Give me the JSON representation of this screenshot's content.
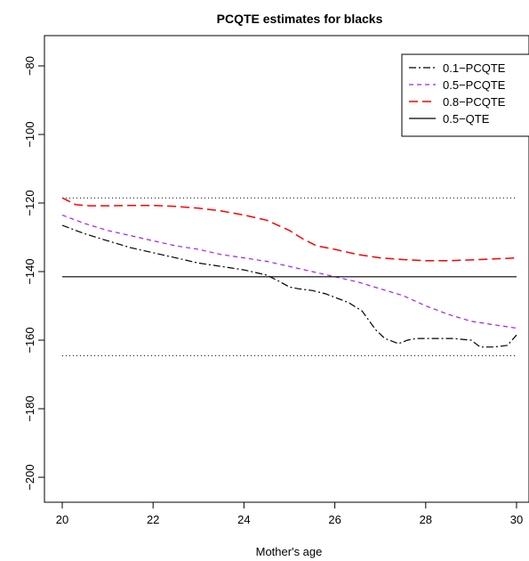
{
  "chart_data": {
    "type": "line",
    "title": "PCQTE estimates for blacks",
    "xlabel": "Mother's age",
    "ylabel": "",
    "xlim": [
      20,
      30
    ],
    "ylim": [
      -200,
      -80
    ],
    "x_ticks": [
      20,
      22,
      24,
      26,
      28,
      30
    ],
    "y_ticks": [
      -200,
      -180,
      -160,
      -140,
      -120,
      -100,
      -80
    ],
    "x_tick_labels": [
      "20",
      "22",
      "24",
      "26",
      "28",
      "30"
    ],
    "y_tick_labels": [
      "−200",
      "−180",
      "−160",
      "−140",
      "−120",
      "−100",
      "−80"
    ],
    "legend_position": "top-right",
    "series": [
      {
        "name": "0.1−PCQTE",
        "color": "#000000",
        "line_style": "dash-dot",
        "x": [
          20,
          20.5,
          21,
          21.5,
          22,
          22.5,
          23,
          23.5,
          24,
          24.5,
          24.8,
          25,
          25.2,
          25.5,
          25.8,
          26,
          26.3,
          26.6,
          26.9,
          27.1,
          27.4,
          27.6,
          27.8,
          28.2,
          28.6,
          29,
          29.2,
          29.5,
          29.8,
          30
        ],
        "values": [
          -126.5,
          -129,
          -131,
          -133,
          -134.5,
          -136,
          -137.5,
          -138.5,
          -139.5,
          -141,
          -143,
          -144.5,
          -145,
          -145.5,
          -146.5,
          -147.5,
          -149,
          -151.5,
          -157,
          -159.5,
          -161,
          -160,
          -159.5,
          -159.5,
          -159.5,
          -160,
          -162,
          -162,
          -161.5,
          -158.5
        ]
      },
      {
        "name": "0.5−PCQTE",
        "color": "#a020f0",
        "line_style": "dashed",
        "x": [
          20,
          20.5,
          21,
          21.5,
          22,
          22.5,
          23,
          23.5,
          24,
          24.5,
          25,
          25.5,
          26,
          26.5,
          27,
          27.5,
          28,
          28.5,
          29,
          29.5,
          30
        ],
        "values": [
          -123.5,
          -126,
          -128,
          -129.5,
          -131,
          -132.5,
          -133.5,
          -135,
          -136,
          -137,
          -138.5,
          -140,
          -141.5,
          -143,
          -145,
          -147,
          -150,
          -152.5,
          -154.5,
          -155.5,
          -156.5
        ]
      },
      {
        "name": "0.8−PCQTE",
        "color": "#ff0000",
        "line_style": "long-dashed",
        "x": [
          20,
          20.3,
          20.6,
          21,
          21.5,
          22,
          22.5,
          23,
          23.5,
          24,
          24.5,
          25,
          25.3,
          25.6,
          26,
          26.5,
          27,
          27.5,
          28,
          28.5,
          29,
          29.5,
          30
        ],
        "values": [
          -118.5,
          -120.5,
          -120.8,
          -120.8,
          -120.7,
          -120.7,
          -121,
          -121.5,
          -122.3,
          -123.5,
          -125,
          -128,
          -130.5,
          -132.5,
          -133.5,
          -135,
          -136,
          -136.5,
          -136.8,
          -136.8,
          -136.6,
          -136.3,
          -136
        ]
      },
      {
        "name": "0.5−QTE",
        "color": "#000000",
        "line_style": "solid",
        "x": [
          20,
          30
        ],
        "values": [
          -141.5,
          -141.5
        ]
      }
    ],
    "reference_lines": {
      "color": "#000000",
      "line_style": "dotted",
      "values": [
        -118.5,
        -164.5
      ]
    }
  }
}
